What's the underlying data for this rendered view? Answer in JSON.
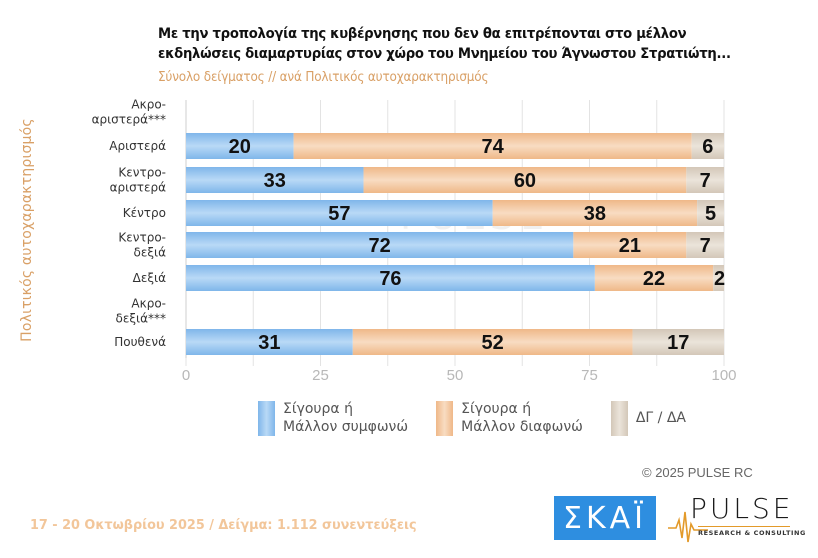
{
  "header": {
    "title_line1": "Με την τροπολογία της κυβέρνησης που δεν θα επιτρέπονται στο μέλλον",
    "title_line2": "εκδηλώσεις διαμαρτυρίας στον χώρο του Μνημείου του Άγνωστου Στρατιώτη...",
    "subtitle": "Σύνολο δείγματος // ανά Πολιτικός αυτοχαρακτηρισμός"
  },
  "colors": {
    "agree": "#8cc0ee",
    "disagree": "#f2c49a",
    "dk": "#d9cfc2",
    "title": "#111111",
    "accent": "#d9a066"
  },
  "chart_data": {
    "type": "bar",
    "orientation": "horizontal",
    "stacked": true,
    "title": "Με την τροπολογία της κυβέρνησης που δεν θα επιτρέπονται στο μέλλον εκδηλώσεις διαμαρτυρίας στον χώρο του Μνημείου του Άγνωστου Στρατιώτη...",
    "subtitle": "Σύνολο δείγματος // ανά Πολιτικός αυτοχαρακτηρισμός",
    "ylabel": "Πολιτικός αυτοχαρακτηρισμός",
    "xlabel": "",
    "xlim": [
      0,
      100
    ],
    "xticks": [
      0,
      25,
      50,
      75,
      100
    ],
    "grid": true,
    "legend_position": "bottom",
    "categories": [
      [
        "Ακρο-",
        "αριστερά***"
      ],
      [
        "Αριστερά"
      ],
      [
        "Κεντρο-",
        "αριστερά"
      ],
      [
        "Κέντρο"
      ],
      [
        "Κεντρο-",
        "δεξιά"
      ],
      [
        "Δεξιά"
      ],
      [
        "Ακρο-",
        "δεξιά***"
      ],
      [
        "Πουθενά"
      ]
    ],
    "series": [
      {
        "name": "Σίγουρα ή Μάλλον συμφωνώ",
        "values": [
          null,
          20,
          33,
          57,
          72,
          76,
          null,
          31
        ]
      },
      {
        "name": "Σίγουρα ή Μάλλον διαφωνώ",
        "values": [
          null,
          74,
          60,
          38,
          21,
          22,
          null,
          52
        ]
      },
      {
        "name": "ΔΓ / ΔΑ",
        "values": [
          null,
          6,
          7,
          5,
          7,
          2,
          null,
          17
        ]
      }
    ]
  },
  "legend": [
    {
      "label": "Σίγουρα ή\nΜάλλον συμφωνώ"
    },
    {
      "label": "Σίγουρα ή\nΜάλλον διαφωνώ"
    },
    {
      "label": "ΔΓ / ΔΑ"
    }
  ],
  "watermark": "PULSE",
  "copyright": "©  2025  PULSE RC",
  "footer": "17 - 20 Οκτωβρίου 2025  /  Δείγμα:  1.112 συνεντεύξεις",
  "logos": {
    "skai": "ΣΚΑΪ",
    "pulse": "PULSE",
    "pulse_sub": "RESEARCH & CONSULTING"
  }
}
